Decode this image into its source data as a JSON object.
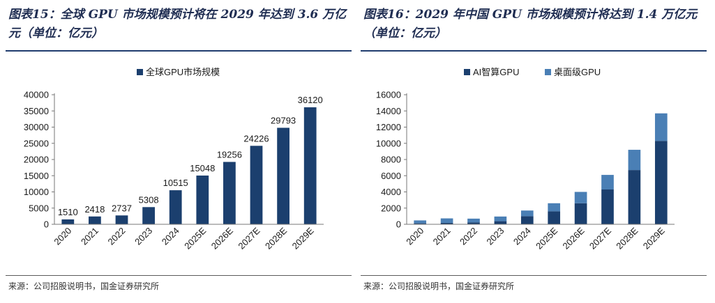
{
  "source_text": "来源：公司招股说明书，国金证券研究所",
  "chart_data": [
    {
      "type": "bar",
      "title": "图表15：全球 GPU 市场规模预计将在 2029 年达到 3.6 万亿元（单位：亿元）",
      "categories": [
        "2020",
        "2021",
        "2022",
        "2023",
        "2024",
        "2025E",
        "2026E",
        "2027E",
        "2028E",
        "2029E"
      ],
      "series": [
        {
          "name": "全球GPU市场规模",
          "values": [
            1510,
            2418,
            2737,
            5308,
            10515,
            15048,
            19256,
            24226,
            29793,
            36120
          ],
          "color": "#1b3f6e"
        }
      ],
      "data_labels": true,
      "ylim": [
        0,
        40000
      ],
      "yticks": [
        0,
        5000,
        10000,
        15000,
        20000,
        25000,
        30000,
        35000,
        40000
      ],
      "legend_position": "top-center",
      "grid": false,
      "xlabel": "",
      "ylabel": ""
    },
    {
      "type": "bar",
      "stacked": true,
      "title": "图表16：2029 年中国 GPU 市场规模预计将达到 1.4 万亿元（单位：亿元）",
      "categories": [
        "2020",
        "2021",
        "2022",
        "2023",
        "2024",
        "2025E",
        "2026E",
        "2027E",
        "2028E",
        "2029E"
      ],
      "series": [
        {
          "name": "AI智算GPU",
          "values": [
            120,
            180,
            240,
            380,
            1000,
            1600,
            2600,
            4300,
            6700,
            10300
          ],
          "color": "#1b3f6e"
        },
        {
          "name": "桌面级GPU",
          "values": [
            360,
            550,
            460,
            580,
            700,
            1000,
            1400,
            1800,
            2500,
            3400
          ],
          "color": "#4a7fb5"
        }
      ],
      "ylim": [
        0,
        16000
      ],
      "yticks": [
        0,
        2000,
        4000,
        6000,
        8000,
        10000,
        12000,
        14000,
        16000
      ],
      "legend_position": "top-center",
      "grid": false,
      "xlabel": "",
      "ylabel": ""
    }
  ]
}
